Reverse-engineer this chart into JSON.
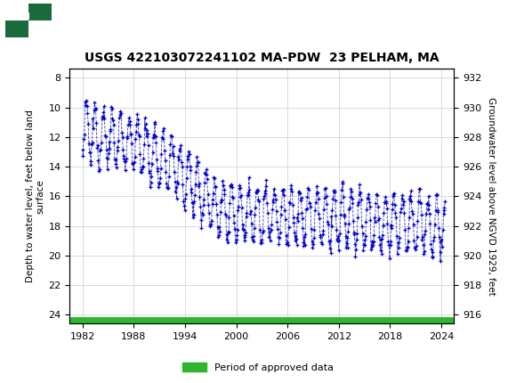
{
  "title": "USGS 422103072241102 MA-PDW  23 PELHAM, MA",
  "ylabel_left": "Depth to water level, feet below land\nsurface",
  "ylabel_right": "Groundwater level above NGVD 1929, feet",
  "ylim_left": [
    24.6,
    7.4
  ],
  "ylim_right": [
    915.4,
    932.6
  ],
  "xlim": [
    1980.5,
    2025.5
  ],
  "xticks": [
    1982,
    1988,
    1994,
    2000,
    2006,
    2012,
    2018,
    2024
  ],
  "yticks_left": [
    8,
    10,
    12,
    14,
    16,
    18,
    20,
    22,
    24
  ],
  "yticks_right": [
    932,
    930,
    928,
    926,
    924,
    922,
    920,
    918,
    916
  ],
  "header_color": "#1a6b3c",
  "data_color": "#0000cc",
  "approved_color": "#2db52d",
  "background_color": "#ffffff",
  "grid_color": "#cccccc",
  "title_fontsize": 10,
  "legend_label": "Period of approved data",
  "approved_y_left": 24.45
}
